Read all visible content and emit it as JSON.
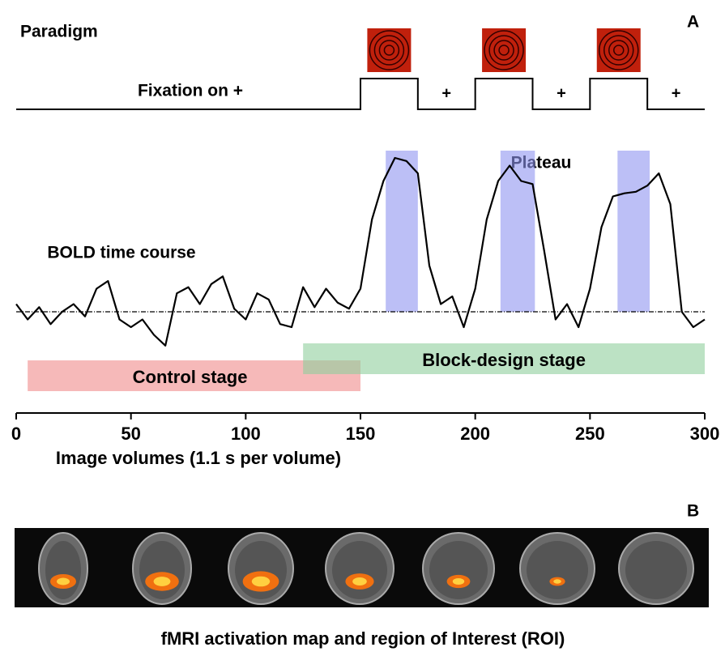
{
  "chart_data": {
    "type": "line",
    "panel_a_label": "A",
    "paradigm_label": "Paradigm",
    "fixation_label": "Fixation on +",
    "fixation_marks": [
      "+",
      "+",
      "+"
    ],
    "stimulus_blocks": [
      [
        150,
        175
      ],
      [
        200,
        225
      ],
      [
        250,
        275
      ]
    ],
    "plateau_label": "Plateau",
    "plateaus": [
      [
        161,
        175
      ],
      [
        211,
        226
      ],
      [
        262,
        276
      ]
    ],
    "stages": [
      {
        "name": "Control stage",
        "range": [
          5,
          150
        ],
        "color": "#f08a8a"
      },
      {
        "name": "Block-design stage",
        "range": [
          125,
          300
        ],
        "color": "#8fcf9c"
      }
    ],
    "series": [
      {
        "name": "BOLD time course",
        "color": "#000000",
        "x": [
          0,
          5,
          10,
          15,
          20,
          25,
          30,
          35,
          40,
          45,
          50,
          55,
          60,
          65,
          70,
          75,
          80,
          85,
          90,
          95,
          100,
          105,
          110,
          115,
          120,
          125,
          130,
          135,
          140,
          145,
          150,
          155,
          160,
          165,
          170,
          175,
          180,
          185,
          190,
          195,
          200,
          205,
          210,
          215,
          220,
          225,
          230,
          235,
          240,
          245,
          250,
          255,
          260,
          265,
          270,
          275,
          280,
          285,
          290,
          295,
          300
        ],
        "values": [
          0.5,
          -0.5,
          0.3,
          -0.8,
          0,
          0.5,
          -0.3,
          1.5,
          2,
          -0.5,
          -1,
          -0.5,
          -1.5,
          -2.2,
          1.2,
          1.6,
          0.5,
          1.8,
          2.3,
          0.2,
          -0.5,
          1.2,
          0.8,
          -0.8,
          -1,
          1.6,
          0.3,
          1.5,
          0.6,
          0.2,
          1.5,
          6,
          8.5,
          10,
          9.8,
          9,
          3,
          0.5,
          1,
          -1,
          1.5,
          6,
          8.5,
          9.5,
          8.5,
          8.3,
          4,
          -0.5,
          0.5,
          -1,
          1.5,
          5.5,
          7.5,
          7.7,
          7.8,
          8.2,
          9,
          7,
          0,
          -1,
          -0.5
        ]
      }
    ],
    "xlabel": "Image volumes (1.1 s per volume)",
    "xlim": [
      0,
      300
    ],
    "xticks": [
      0,
      50,
      100,
      150,
      200,
      250,
      300
    ],
    "ylim": [
      -3,
      11
    ],
    "baseline": 0,
    "panel_b_label": "B",
    "panel_b_caption": "fMRI activation map and region of Interest (ROI)"
  }
}
